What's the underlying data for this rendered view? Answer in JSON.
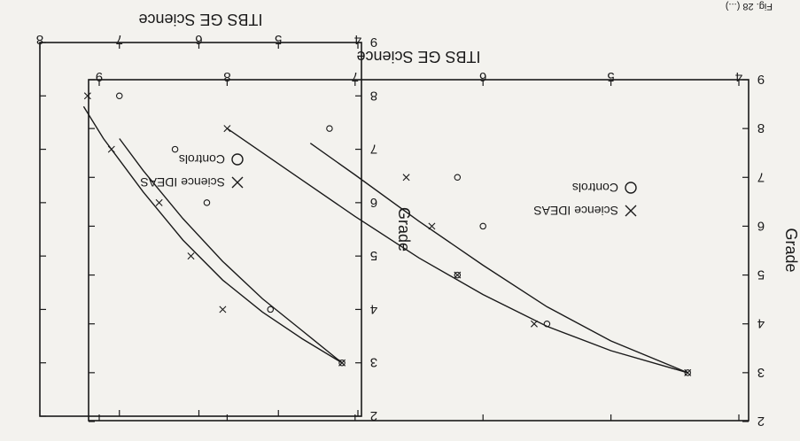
{
  "colors": {
    "ink": "#1a1a1a",
    "paper": "#f3f2ee"
  },
  "corner_text": "Fig. 28 (...)",
  "chart_data": [
    {
      "type": "scatter",
      "orientation": "rotated-180",
      "xlabel": "ITBS GE Science",
      "ylabel": "Grade",
      "xlim": [
        4,
        9
      ],
      "ylim": [
        2,
        9
      ],
      "xticks": [
        "4",
        "5",
        "6",
        "7",
        "8",
        "9"
      ],
      "yticks": [
        "2",
        "3",
        "4",
        "5",
        "6",
        "7",
        "8",
        "9"
      ],
      "legend_position": "top",
      "series": [
        {
          "name": "Controls",
          "marker": "circle",
          "points": [
            [
              4.4,
              3
            ],
            [
              5.5,
              4
            ],
            [
              6.0,
              6
            ],
            [
              6.2,
              5
            ],
            [
              6.2,
              7
            ],
            [
              7.2,
              8
            ]
          ],
          "fit_curve": [
            [
              4.4,
              3.0
            ],
            [
              5.0,
              3.65
            ],
            [
              5.5,
              4.35
            ],
            [
              6.0,
              5.2
            ],
            [
              6.5,
              6.1
            ],
            [
              7.0,
              7.05
            ],
            [
              7.35,
              7.7
            ]
          ]
        },
        {
          "name": "Science IDEAS",
          "marker": "x",
          "points": [
            [
              4.4,
              3
            ],
            [
              5.6,
              4
            ],
            [
              6.2,
              5
            ],
            [
              6.4,
              6
            ],
            [
              6.6,
              7
            ],
            [
              8.0,
              8
            ]
          ],
          "fit_curve": [
            [
              4.4,
              3.0
            ],
            [
              5.0,
              3.45
            ],
            [
              5.5,
              3.95
            ],
            [
              6.0,
              4.6
            ],
            [
              6.5,
              5.35
            ],
            [
              7.0,
              6.2
            ],
            [
              7.5,
              7.1
            ],
            [
              8.0,
              8.0
            ]
          ]
        }
      ]
    },
    {
      "type": "scatter",
      "orientation": "rotated-180",
      "xlabel": "ITBS GE Science",
      "ylabel": "Grade",
      "xlim": [
        4,
        8
      ],
      "ylim": [
        2,
        9
      ],
      "xticks": [
        "4",
        "5",
        "6",
        "7",
        "8"
      ],
      "yticks": [
        "2",
        "3",
        "4",
        "5",
        "6",
        "7",
        "8",
        "9"
      ],
      "legend_position": "top",
      "series": [
        {
          "name": "Controls",
          "marker": "circle",
          "points": [
            [
              4.2,
              3
            ],
            [
              5.1,
              4
            ],
            [
              5.9,
              6
            ],
            [
              6.3,
              7
            ],
            [
              7.0,
              8
            ]
          ],
          "fit_curve": [
            [
              4.2,
              3.0
            ],
            [
              4.7,
              3.6
            ],
            [
              5.2,
              4.2
            ],
            [
              5.7,
              4.9
            ],
            [
              6.2,
              5.7
            ],
            [
              6.7,
              6.6
            ],
            [
              7.0,
              7.2
            ]
          ]
        },
        {
          "name": "Science IDEAS",
          "marker": "x",
          "points": [
            [
              4.2,
              3
            ],
            [
              5.7,
              4
            ],
            [
              6.1,
              5
            ],
            [
              6.5,
              6
            ],
            [
              7.1,
              7
            ],
            [
              7.4,
              8
            ]
          ],
          "fit_curve": [
            [
              4.2,
              3.0
            ],
            [
              4.7,
              3.45
            ],
            [
              5.2,
              3.95
            ],
            [
              5.7,
              4.55
            ],
            [
              6.2,
              5.3
            ],
            [
              6.7,
              6.2
            ],
            [
              7.2,
              7.2
            ],
            [
              7.45,
              7.8
            ]
          ]
        }
      ]
    }
  ]
}
